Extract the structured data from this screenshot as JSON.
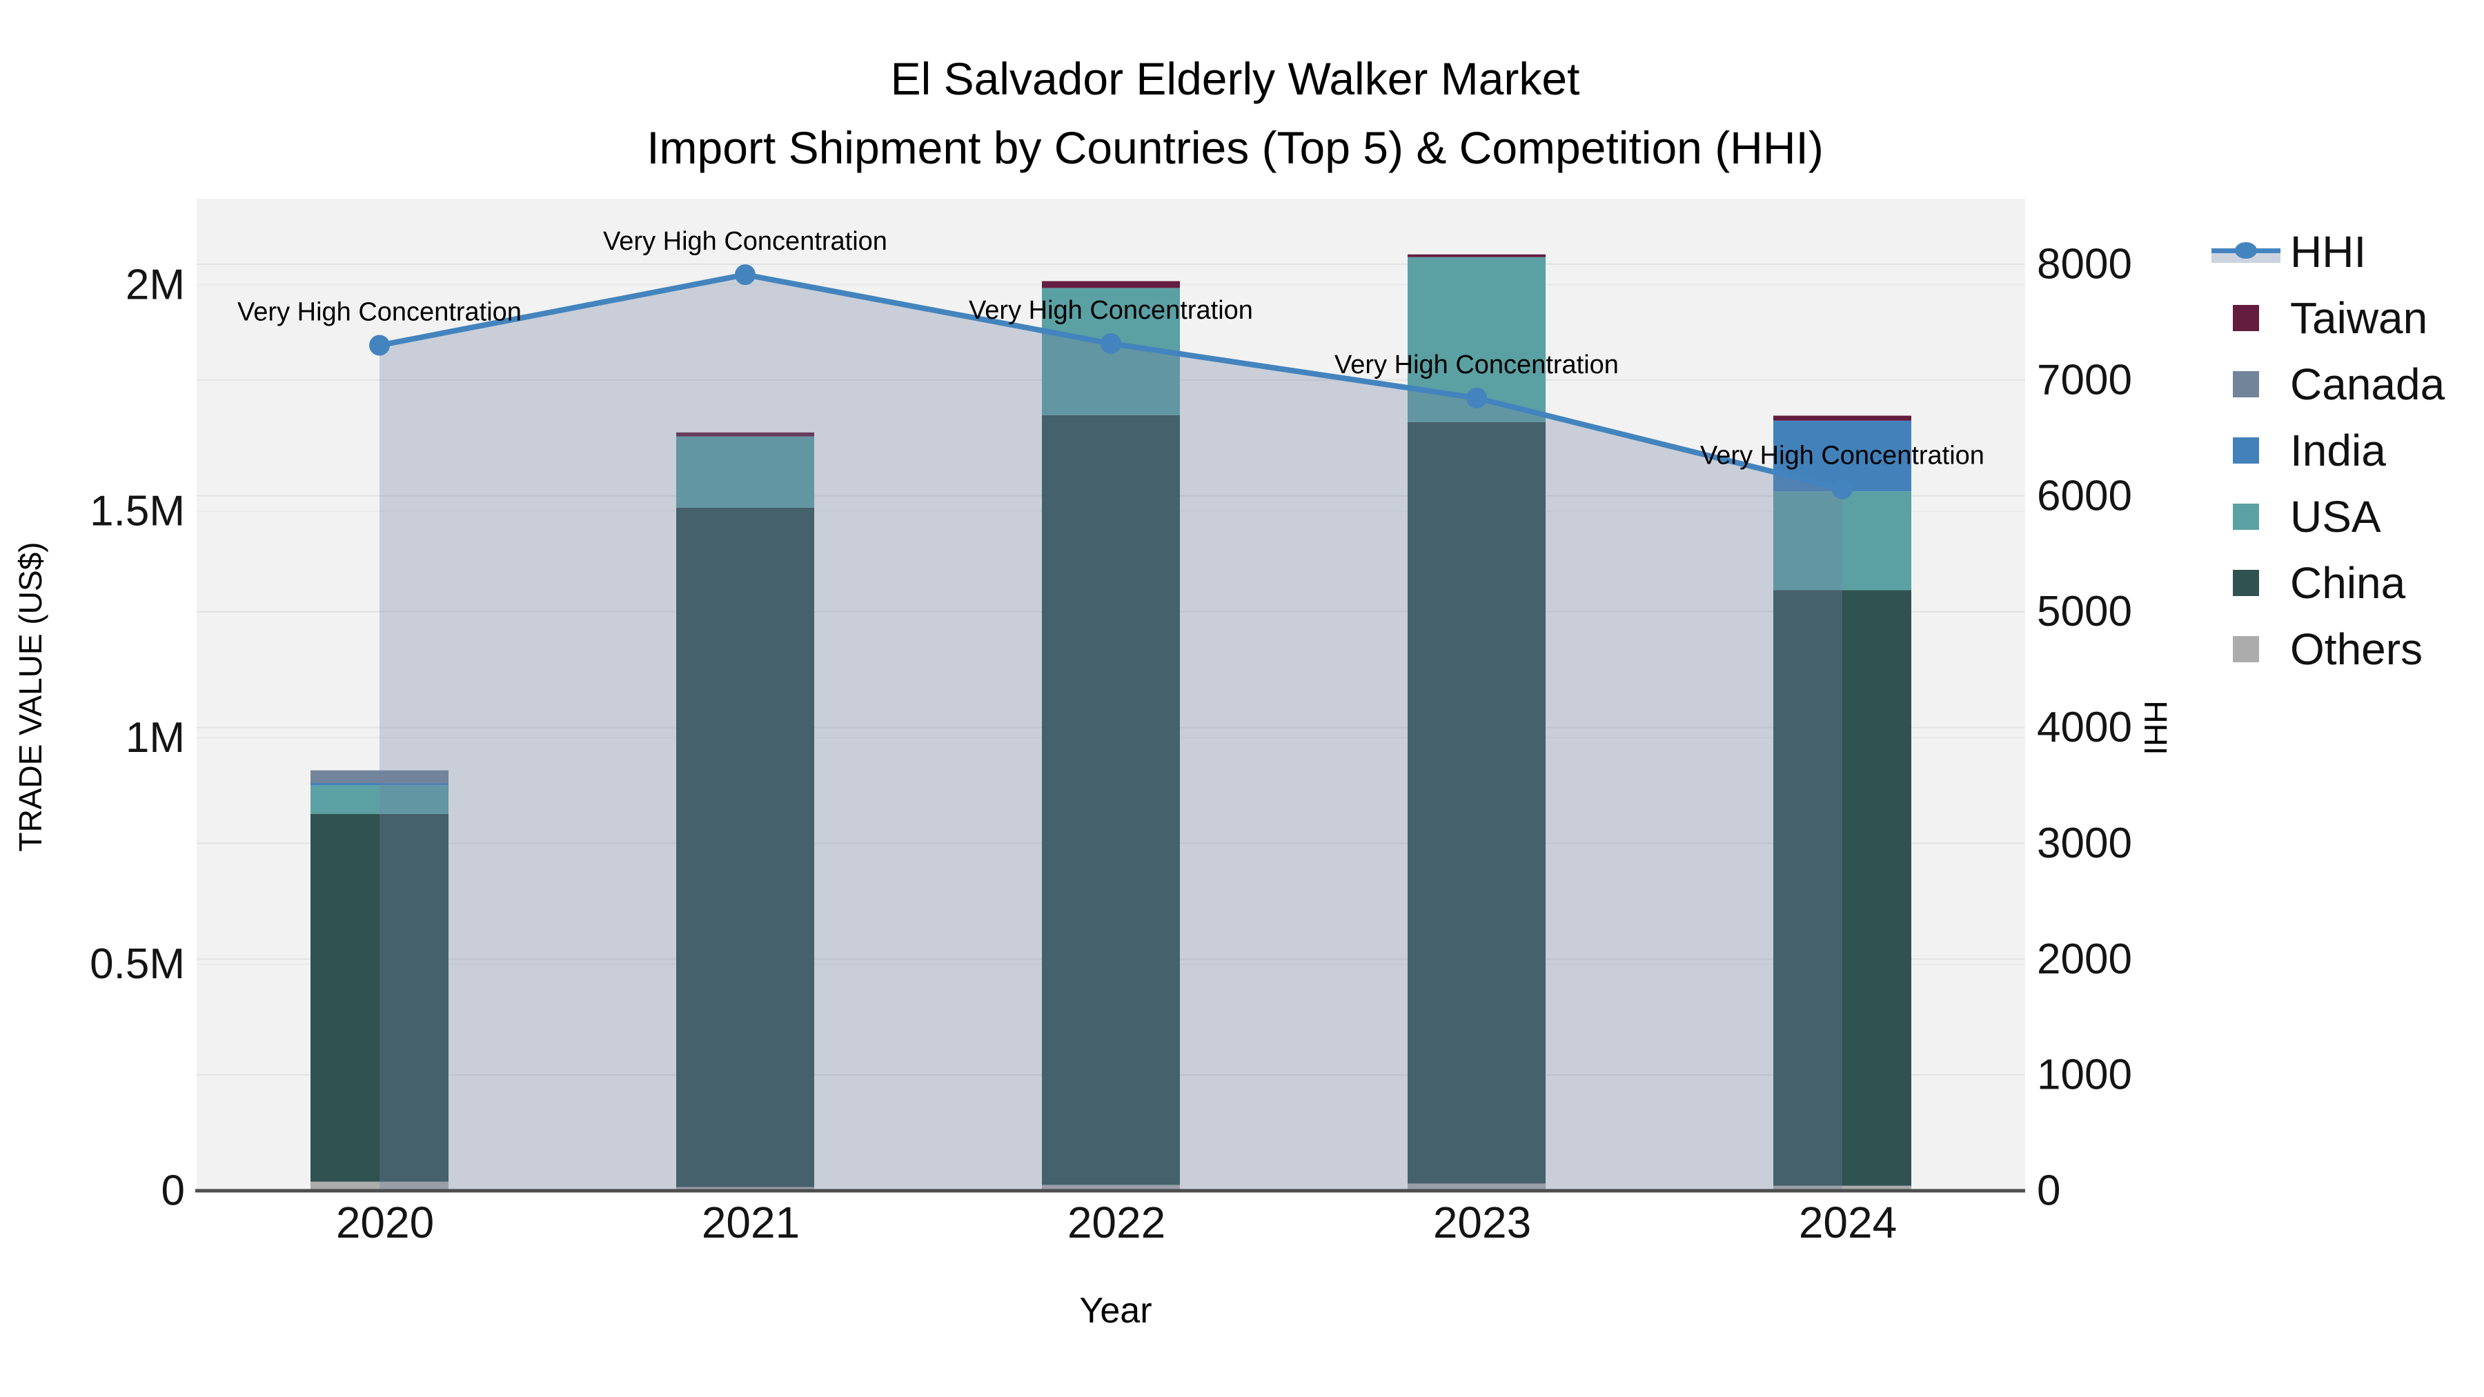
{
  "title": {
    "line1": "El Salvador Elderly Walker Market",
    "line2": "Import Shipment by Countries (Top 5) & Competition (HHI)"
  },
  "axis_titles": {
    "left": "TRADE VALUE (US$)",
    "right": "HHI",
    "x": "Year"
  },
  "legend": {
    "items": [
      {
        "id": "hhi",
        "label": "HHI",
        "type": "line",
        "color": "#4384BE",
        "band_color": "#CCD3DE"
      },
      {
        "id": "taiwan",
        "label": "Taiwan",
        "type": "swatch",
        "color": "#641D3E"
      },
      {
        "id": "canada",
        "label": "Canada",
        "type": "swatch",
        "color": "#72849A"
      },
      {
        "id": "india",
        "label": "India",
        "type": "swatch",
        "color": "#4281BA"
      },
      {
        "id": "usa",
        "label": "USA",
        "type": "swatch",
        "color": "#5BA0A3"
      },
      {
        "id": "china",
        "label": "China",
        "type": "swatch",
        "color": "#305251"
      },
      {
        "id": "others",
        "label": "Others",
        "type": "swatch",
        "color": "#ACACAC"
      }
    ]
  },
  "chart_data": {
    "type": "bar",
    "subtype": "stacked-bar-with-line",
    "title": "El Salvador Elderly Walker Market — Import Shipment by Countries (Top 5) & Competition (HHI)",
    "categories": [
      "2020",
      "2021",
      "2022",
      "2023",
      "2024"
    ],
    "series": [
      {
        "name": "Others",
        "color": "#ACACAC",
        "values": [
          20000,
          8000,
          13000,
          16000,
          11000
        ]
      },
      {
        "name": "China",
        "color": "#305251",
        "values": [
          812000,
          1500000,
          1699000,
          1681000,
          1315000
        ]
      },
      {
        "name": "USA",
        "color": "#5BA0A3",
        "values": [
          63000,
          157000,
          281000,
          364000,
          218000
        ]
      },
      {
        "name": "India",
        "color": "#4281BA",
        "values": [
          5000,
          0,
          0,
          0,
          156000
        ]
      },
      {
        "name": "Canada",
        "color": "#72849A",
        "values": [
          28000,
          0,
          0,
          0,
          0
        ]
      },
      {
        "name": "Taiwan",
        "color": "#641D3E",
        "values": [
          0,
          9000,
          15000,
          6000,
          11000
        ]
      }
    ],
    "bar_totals": [
      928000,
      1674000,
      2008000,
      2067000,
      1711000
    ],
    "line_series": {
      "name": "HHI",
      "color": "#4384BE",
      "fill_color": "rgba(114,130,161,0.32)",
      "values": [
        7300,
        7910,
        7315,
        6845,
        6060
      ]
    },
    "annotations": [
      "Very High Concentration",
      "Very High Concentration",
      "Very High Concentration",
      "Very High Concentration",
      "Very High Concentration"
    ],
    "y_left": {
      "label": "TRADE VALUE (US$)",
      "range": [
        0,
        2190000
      ],
      "ticks": [
        {
          "v": 0,
          "label": "0"
        },
        {
          "v": 500000,
          "label": "0.5M"
        },
        {
          "v": 1000000,
          "label": "1M"
        },
        {
          "v": 1500000,
          "label": "1.5M"
        },
        {
          "v": 2000000,
          "label": "2M"
        }
      ]
    },
    "y_right": {
      "label": "HHI",
      "range": [
        0,
        8566
      ],
      "ticks": [
        {
          "v": 0,
          "label": "0"
        },
        {
          "v": 1000,
          "label": "1000"
        },
        {
          "v": 2000,
          "label": "2000"
        },
        {
          "v": 3000,
          "label": "3000"
        },
        {
          "v": 4000,
          "label": "4000"
        },
        {
          "v": 5000,
          "label": "5000"
        },
        {
          "v": 6000,
          "label": "6000"
        },
        {
          "v": 7000,
          "label": "7000"
        },
        {
          "v": 8000,
          "label": "8000"
        }
      ]
    },
    "xlabel": "Year",
    "grid": true,
    "legend_position": "right",
    "plot_bg": "#F2F2F2",
    "grid_color_left": "#EAEAEA",
    "grid_color_right": "#E2E2E2",
    "baseline_color": "#4D4D4D",
    "annotation_color": "#000000",
    "tick_color": "#141414"
  }
}
